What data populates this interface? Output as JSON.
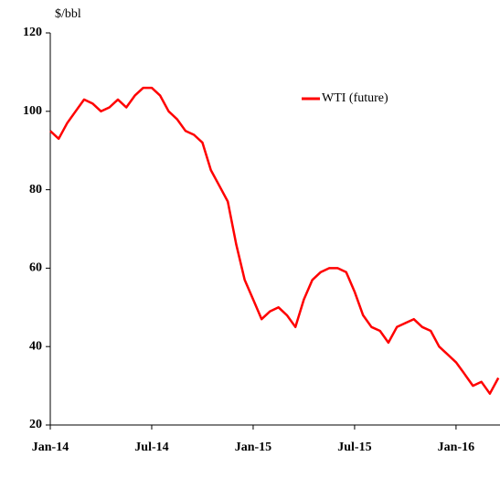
{
  "chart_data": {
    "type": "line",
    "y_label": "$/bbl",
    "x": [
      0,
      0.5,
      1,
      1.5,
      2,
      2.5,
      3,
      3.5,
      4,
      4.5,
      5,
      5.5,
      6,
      6.5,
      7,
      7.5,
      8,
      8.5,
      9,
      9.5,
      10,
      10.5,
      11,
      11.5,
      12,
      12.5,
      13,
      13.5,
      14,
      14.5,
      15,
      15.5,
      16,
      16.5,
      17,
      17.5,
      18,
      18.5,
      19,
      19.5,
      20,
      20.5,
      21,
      21.5,
      22,
      22.5,
      23,
      23.5,
      24,
      24.5,
      25,
      25.5,
      26,
      26.5
    ],
    "series": [
      {
        "name": "WTI (future)",
        "color": "#ff0000",
        "values": [
          95,
          93,
          97,
          100,
          103,
          102,
          100,
          101,
          103,
          101,
          104,
          106,
          106,
          104,
          100,
          98,
          95,
          94,
          92,
          85,
          81,
          77,
          66,
          57,
          52,
          47,
          49,
          50,
          48,
          45,
          52,
          57,
          59,
          60,
          60,
          59,
          54,
          48,
          45,
          44,
          41,
          45,
          46,
          47,
          45,
          44,
          40,
          38,
          36,
          33,
          30,
          31,
          28,
          32
        ]
      }
    ],
    "xlim": [
      0,
      26.6
    ],
    "xticks": [
      {
        "value": 0,
        "label": "Jan-14"
      },
      {
        "value": 6,
        "label": "Jul-14"
      },
      {
        "value": 12,
        "label": "Jan-15"
      },
      {
        "value": 18,
        "label": "Jul-15"
      },
      {
        "value": 24,
        "label": "Jan-16"
      }
    ],
    "ylim": [
      20,
      120
    ],
    "yticks": [
      20,
      40,
      60,
      80,
      100,
      120
    ],
    "legend": "upper right"
  }
}
